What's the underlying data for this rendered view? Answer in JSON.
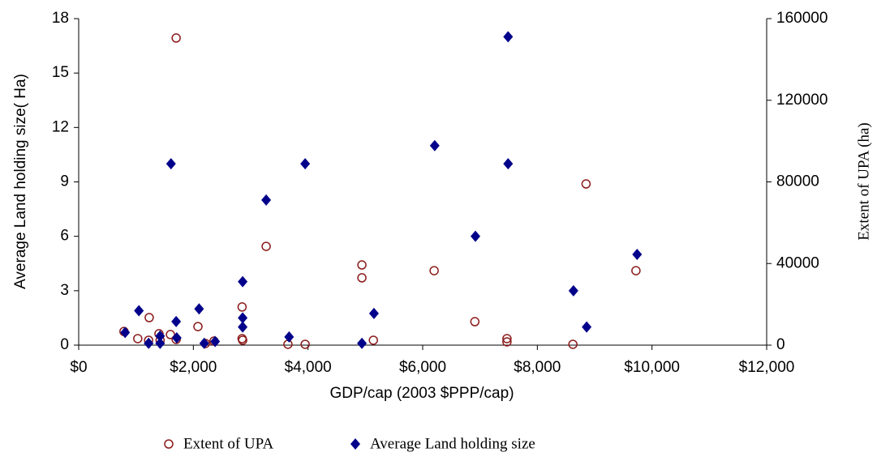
{
  "chart_data": {
    "type": "scatter",
    "x_label": "GDP/cap (2003 $PPP/cap)",
    "y_label": "Average Land holding size( Ha)",
    "y2_label": "Extent of  UPA (ha)",
    "xlim": [
      0,
      12000
    ],
    "xticks": [
      {
        "value": 0,
        "label": "$0"
      },
      {
        "value": 2000,
        "label": "$2,000"
      },
      {
        "value": 4000,
        "label": "$4,000"
      },
      {
        "value": 6000,
        "label": "$6,000"
      },
      {
        "value": 8000,
        "label": "$8,000"
      },
      {
        "value": 10000,
        "label": "$10,000"
      },
      {
        "value": 12000,
        "label": "$12,000"
      }
    ],
    "ylim": [
      0,
      18
    ],
    "yticks": [
      0,
      3,
      6,
      9,
      12,
      15,
      18
    ],
    "y2lim": [
      0,
      160000
    ],
    "y2ticks": [
      0,
      40000,
      80000,
      120000,
      160000
    ],
    "legend": "bottom",
    "series": [
      {
        "name": "Extent of  UPA",
        "color": "#8b1a1a",
        "marker": "open-circle",
        "axis": "y2",
        "x": [
          790,
          1030,
          1220,
          1230,
          1400,
          1420,
          1600,
          1700,
          1700,
          2080,
          2210,
          2360,
          2850,
          2850,
          2860,
          3270,
          3650,
          3950,
          4940,
          4940,
          5140,
          6200,
          6910,
          7470,
          7470,
          8620,
          8850,
          9720
        ],
        "values": [
          6700,
          3200,
          2400,
          13500,
          5600,
          2400,
          5200,
          150500,
          2800,
          9100,
          800,
          2000,
          18700,
          3200,
          2400,
          48400,
          400,
          400,
          39300,
          33000,
          2400,
          36500,
          11500,
          3200,
          1600,
          400,
          79000,
          36500
        ]
      },
      {
        "name": "Average Land holding size",
        "color": "#00008b",
        "marker": "diamond",
        "axis": "y",
        "x": [
          810,
          1050,
          1220,
          1420,
          1420,
          1610,
          1700,
          1710,
          2100,
          2190,
          2380,
          2860,
          2860,
          2860,
          3270,
          3670,
          3950,
          4940,
          5150,
          6210,
          6920,
          7490,
          7490,
          8630,
          8860,
          9740
        ],
        "values": [
          0.7,
          1.9,
          0.1,
          0.1,
          0.5,
          10,
          1.3,
          0.4,
          2.0,
          0.1,
          0.2,
          3.5,
          1.5,
          1.0,
          8,
          0.45,
          10,
          0.1,
          1.75,
          11,
          6,
          17,
          10,
          3,
          1.0,
          5
        ]
      }
    ]
  }
}
